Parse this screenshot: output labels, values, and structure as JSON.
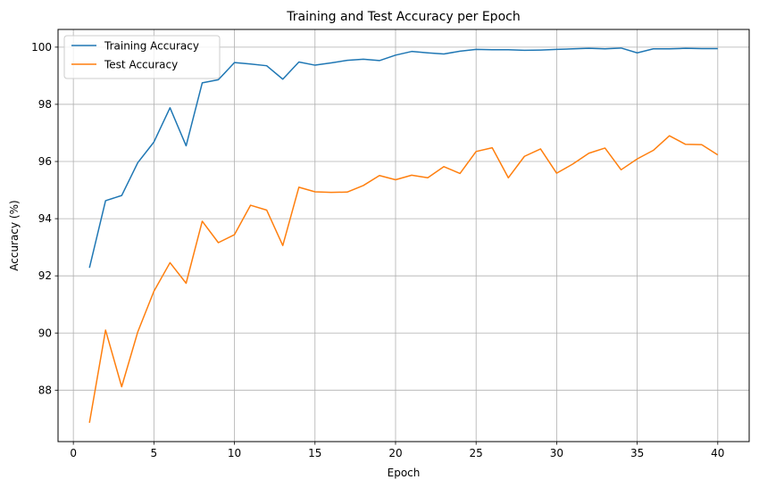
{
  "chart_data": {
    "type": "line",
    "title": "Training and Test Accuracy per Epoch",
    "xlabel": "Epoch",
    "ylabel": "Accuracy (%)",
    "xlim": [
      -0.95,
      41.95
    ],
    "ylim": [
      86.2,
      100.62
    ],
    "xticks": [
      0,
      5,
      10,
      15,
      20,
      25,
      30,
      35,
      40
    ],
    "yticks": [
      88,
      90,
      92,
      94,
      96,
      98,
      100
    ],
    "grid": true,
    "legend": "top-left",
    "x": [
      1,
      2,
      3,
      4,
      5,
      6,
      7,
      8,
      9,
      10,
      11,
      12,
      13,
      14,
      15,
      16,
      17,
      18,
      19,
      20,
      21,
      22,
      23,
      24,
      25,
      26,
      27,
      28,
      29,
      30,
      31,
      32,
      33,
      34,
      35,
      36,
      37,
      38,
      39,
      40
    ],
    "series": [
      {
        "name": "Training Accuracy",
        "color": "#1f77b4",
        "values": [
          92.28,
          94.63,
          94.81,
          95.96,
          96.68,
          97.88,
          96.55,
          98.75,
          98.86,
          99.46,
          99.41,
          99.35,
          98.88,
          99.48,
          99.37,
          99.45,
          99.54,
          99.58,
          99.53,
          99.72,
          99.85,
          99.8,
          99.76,
          99.86,
          99.92,
          99.91,
          99.91,
          99.89,
          99.9,
          99.92,
          99.94,
          99.96,
          99.94,
          99.97,
          99.8,
          99.94,
          99.94,
          99.96,
          99.95,
          99.95
        ]
      },
      {
        "name": "Test Accuracy",
        "color": "#ff7f0e",
        "values": [
          86.86,
          90.1,
          88.12,
          90.04,
          91.46,
          92.46,
          91.74,
          93.91,
          93.16,
          93.44,
          94.47,
          94.3,
          93.06,
          95.1,
          94.94,
          94.92,
          94.93,
          95.16,
          95.51,
          95.36,
          95.52,
          95.43,
          95.82,
          95.58,
          96.35,
          96.48,
          95.43,
          96.18,
          96.44,
          95.59,
          95.91,
          96.29,
          96.47,
          95.71,
          96.09,
          96.39,
          96.9,
          96.6,
          96.59,
          96.23
        ]
      }
    ]
  }
}
